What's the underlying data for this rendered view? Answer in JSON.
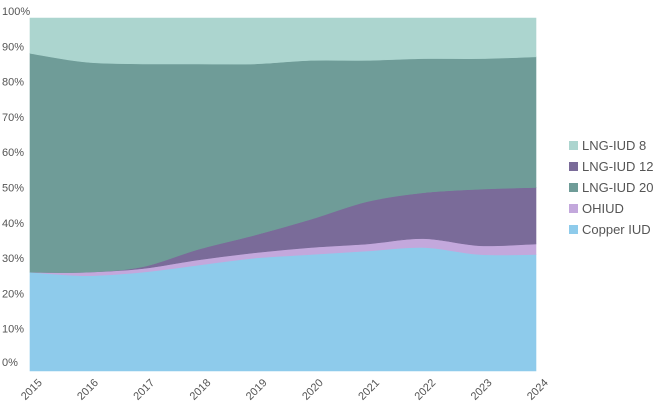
{
  "chart_data": {
    "type": "area",
    "stacked": true,
    "normalized_percent": true,
    "title": "",
    "xlabel": "",
    "ylabel": "",
    "x": [
      "2015",
      "2016",
      "2017",
      "2018",
      "2019",
      "2020",
      "2021",
      "2022",
      "2023",
      "2024"
    ],
    "y_ticks": [
      "0%",
      "10%",
      "20%",
      "30%",
      "40%",
      "50%",
      "60%",
      "70%",
      "80%",
      "90%",
      "100%"
    ],
    "ylim": [
      0,
      100
    ],
    "grid": false,
    "legend_position": "right",
    "legend_order": [
      "LNG-IUD 8",
      "LNG-IUD 12",
      "LNG-IUD 20",
      "OHIUD",
      "Copper IUD"
    ],
    "series": [
      {
        "name": "Copper IUD",
        "color": "#8ecbeb",
        "values": [
          28,
          27,
          28,
          30,
          32,
          33,
          34,
          35,
          33,
          33
        ]
      },
      {
        "name": "OHIUD",
        "color": "#c3a8dc",
        "values": [
          0,
          1,
          1,
          1.5,
          1.5,
          2,
          2,
          2.5,
          2.5,
          3
        ]
      },
      {
        "name": "LNG-IUD 12",
        "color": "#7a6b99",
        "values": [
          0,
          0,
          0.5,
          3,
          5,
          8,
          12,
          13,
          16,
          16
        ]
      },
      {
        "name": "LNG-IUD 20",
        "color": "#6f9c98",
        "values": [
          62,
          59.5,
          57.5,
          52.5,
          48.5,
          45,
          40,
          38,
          37,
          37
        ]
      },
      {
        "name": "LNG-IUD 8",
        "color": "#acd5cf",
        "values": [
          10,
          12.5,
          13,
          13,
          13,
          12,
          12,
          11.5,
          11.5,
          11
        ]
      }
    ]
  }
}
